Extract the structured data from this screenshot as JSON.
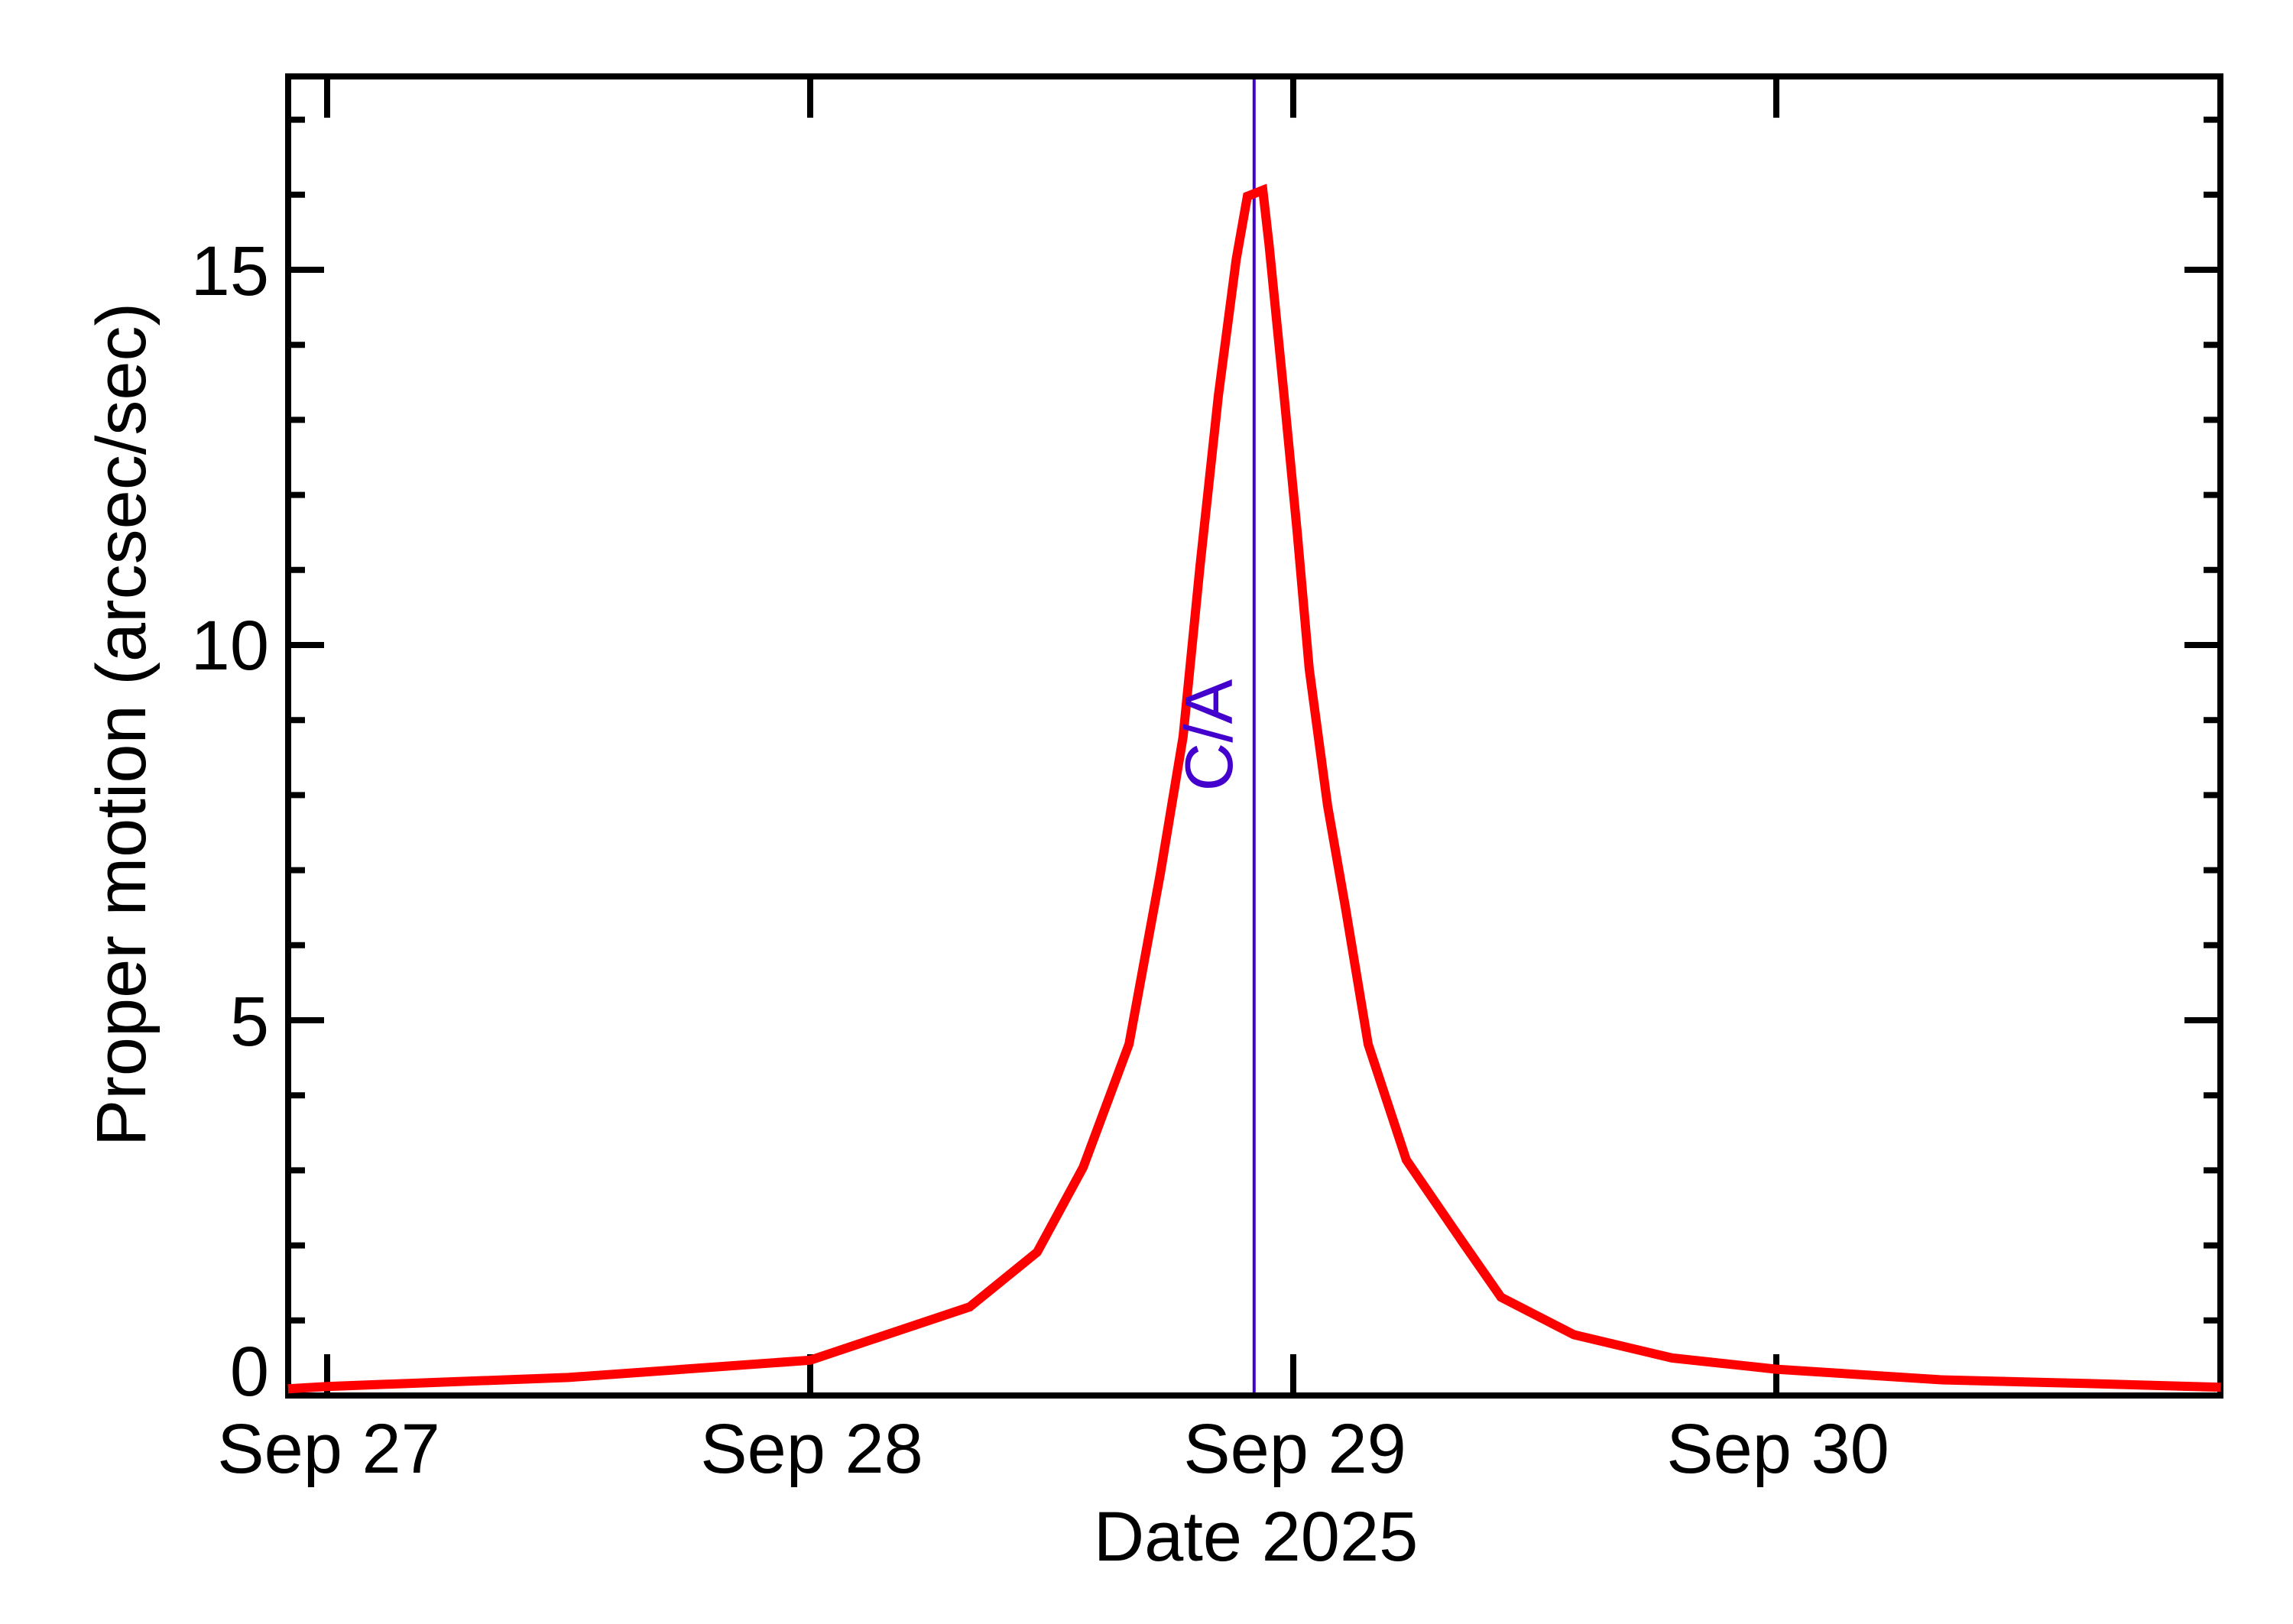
{
  "chart_data": {
    "type": "line",
    "title": "",
    "xlabel": "Date 2025",
    "ylabel": "Proper motion (arcsec/sec)",
    "x_unit": "days since Sep 27 00:00",
    "xlim": [
      -0.081,
      3.92
    ],
    "ylim": [
      0,
      17.58
    ],
    "grid": false,
    "legend": null,
    "x_ticks": [
      {
        "value": 0,
        "label": "Sep 27"
      },
      {
        "value": 1,
        "label": "Sep 28"
      },
      {
        "value": 2,
        "label": "Sep 29"
      },
      {
        "value": 3,
        "label": "Sep 30"
      }
    ],
    "y_ticks": [
      {
        "value": 0,
        "label": "0"
      },
      {
        "value": 5,
        "label": "5"
      },
      {
        "value": 10,
        "label": "10"
      },
      {
        "value": 15,
        "label": "15"
      }
    ],
    "y_minor_step": 1,
    "x_minor_step": null,
    "series": [
      {
        "name": "Proper motion",
        "color": "#ff0000",
        "x": [
          -0.081,
          0.0,
          0.5,
          1.0,
          1.33,
          1.47,
          1.565,
          1.66,
          1.725,
          1.772,
          1.807,
          1.845,
          1.882,
          1.905,
          1.937,
          1.95,
          1.981,
          2.008,
          2.033,
          2.071,
          2.108,
          2.155,
          2.234,
          2.35,
          2.43,
          2.581,
          2.784,
          3.0,
          3.339,
          3.641,
          3.92
        ],
        "values": [
          0.09,
          0.12,
          0.24,
          0.47,
          1.18,
          1.91,
          3.04,
          4.68,
          6.96,
          8.78,
          11.05,
          13.32,
          15.14,
          15.98,
          16.06,
          15.33,
          13.32,
          11.51,
          9.68,
          7.86,
          6.5,
          4.68,
          3.14,
          2.05,
          1.31,
          0.81,
          0.5,
          0.35,
          0.21,
          0.16,
          0.11
        ]
      }
    ],
    "annotations": [
      {
        "type": "vline",
        "x": 1.919,
        "label": "C/A",
        "color": "#4400cc",
        "label_rotation": -90,
        "label_y_value": 8.75
      }
    ],
    "peak": {
      "x": 1.937,
      "value": 16.06
    }
  },
  "labels": {
    "xlabel": "Date 2025",
    "ylabel": "Proper motion (arcsec/sec)",
    "ca": "C/A",
    "xtick_0": "Sep 27",
    "xtick_1": "Sep 28",
    "xtick_2": "Sep 29",
    "xtick_3": "Sep 30",
    "ytick_0": "0",
    "ytick_5": "5",
    "ytick_10": "10",
    "ytick_15": "15"
  },
  "colors": {
    "curve": "#ff0000",
    "ca_line": "#4400cc",
    "axes": "#000000",
    "background": "#ffffff"
  }
}
